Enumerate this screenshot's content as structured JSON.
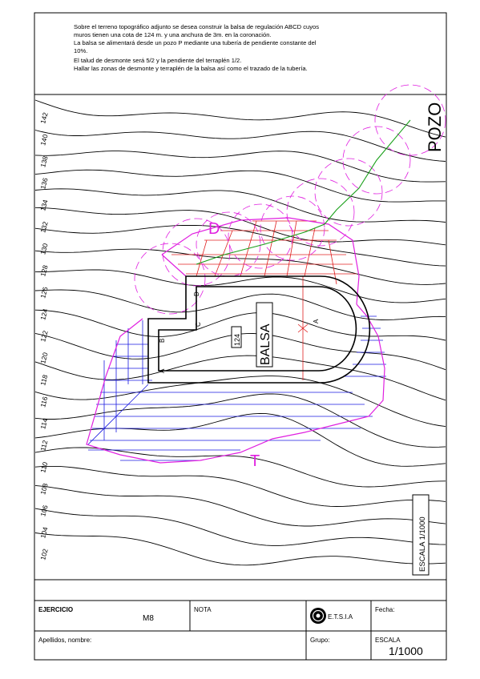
{
  "statement": [
    "Sobre el terreno topográfico adjunto se desea construir la balsa de regulación ABCD cuyos",
    "muros tienen una cota de 124 m. y una anchura de 3m. en la coronación.",
    "La balsa se alimentará desde un pozo P mediante una tubería de pendiente constante del",
    "10%.",
    "El talud de desmonte será 5/2 y la pendiente del terraplén 1/2.",
    "Hallar las zonas de desmonte y terraplén de la balsa así como el trazado de la tubería."
  ],
  "contour_labels": [
    "142",
    "140",
    "138",
    "136",
    "134",
    "132",
    "130",
    "128",
    "126",
    "124",
    "122",
    "120",
    "118",
    "116",
    "114",
    "112",
    "110",
    "108",
    "106",
    "104",
    "102"
  ],
  "plan_labels": {
    "pozo": "POZO",
    "d_zone": "D",
    "t_zone": "T",
    "balsa": "BALSA",
    "cota": "124",
    "vertex_a": "A",
    "vertex_b": "B",
    "vertex_c": "C",
    "vertex_d": "D",
    "vertex_a2": "A",
    "scale_vertical": "ESCALA 1/1000"
  },
  "title_block": {
    "ejercicio_label": "EJERCICIO",
    "ejercicio_value": "M8",
    "nota_label": "NOTA",
    "school": "E.T.S.I.A",
    "fecha_label": "Fecha:",
    "apellidos_label": "Apellidos, nombre:",
    "grupo_label": "Grupo:",
    "escala_label": "ESCALA",
    "escala_value": "1/1000"
  },
  "colors": {
    "contour": "#000000",
    "excavation": "#e02020",
    "fill": "#1a1ae0",
    "construction": "#e020e0",
    "pipe": "#1aa01a"
  }
}
